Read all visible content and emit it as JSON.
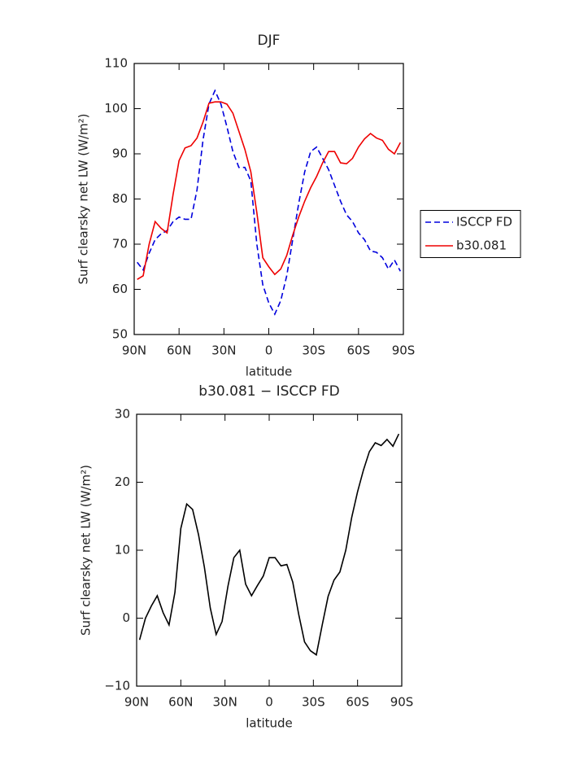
{
  "chart_data": [
    {
      "type": "line",
      "title": "DJF",
      "x_label": "latitude",
      "y_label": "Surf clearsky net LW (W/m²)",
      "x": [
        88,
        84,
        80,
        76,
        72,
        68,
        64,
        60,
        56,
        52,
        48,
        44,
        40,
        36,
        32,
        28,
        24,
        20,
        16,
        12,
        8,
        4,
        0,
        -4,
        -8,
        -12,
        -16,
        -20,
        -24,
        -28,
        -32,
        -36,
        -40,
        -44,
        -48,
        -52,
        -56,
        -60,
        -64,
        -68,
        -72,
        -76,
        -80,
        -84,
        -88
      ],
      "xlim": [
        90,
        -90
      ],
      "xticks": [
        {
          "value": 90,
          "label": "90N"
        },
        {
          "value": 60,
          "label": "60N"
        },
        {
          "value": 30,
          "label": "30N"
        },
        0,
        {
          "value": -30,
          "label": "30S"
        },
        {
          "value": -60,
          "label": "60S"
        },
        {
          "value": -90,
          "label": "90S"
        }
      ],
      "ylim": [
        50,
        110
      ],
      "yticks": [
        50,
        60,
        70,
        80,
        90,
        100,
        110
      ],
      "legend": "right",
      "series": [
        {
          "name": "ISCCP FD",
          "color": "#0000dd",
          "linestyle": "dashed",
          "values": [
            66,
            64.3,
            68,
            71,
            72.3,
            73,
            75,
            76,
            75.5,
            75.5,
            82,
            93,
            101,
            104,
            101,
            96,
            90.5,
            87,
            87,
            84,
            70,
            61,
            57,
            54.5,
            57.5,
            63,
            71,
            79,
            86,
            90.5,
            91.5,
            89,
            86.5,
            83,
            79.5,
            76.5,
            75,
            72.5,
            71,
            68.5,
            68.2,
            67,
            64.5,
            66.5,
            64
          ]
        },
        {
          "name": "b30.081",
          "color": "#ee0000",
          "linestyle": "solid",
          "values": [
            62.2,
            63,
            70,
            75,
            73.5,
            72.5,
            81,
            88.5,
            91.3,
            91.8,
            93.5,
            97,
            101.2,
            101.5,
            101.5,
            101,
            99,
            95,
            91,
            86,
            77,
            67,
            65,
            63.3,
            64.5,
            67.5,
            72,
            76,
            79.5,
            82.5,
            85,
            88,
            90.5,
            90.5,
            88,
            87.8,
            89,
            91.5,
            93.3,
            94.5,
            93.5,
            93,
            91,
            90,
            92.5
          ]
        }
      ]
    },
    {
      "type": "line",
      "title": "b30.081 − ISCCP FD",
      "x_label": "latitude",
      "y_label": "Surf clearsky net LW (W/m²)",
      "x": [
        88,
        84,
        80,
        76,
        72,
        68,
        64,
        60,
        56,
        52,
        48,
        44,
        40,
        36,
        32,
        28,
        24,
        20,
        16,
        12,
        8,
        4,
        0,
        -4,
        -8,
        -12,
        -16,
        -20,
        -24,
        -28,
        -32,
        -36,
        -40,
        -44,
        -48,
        -52,
        -56,
        -60,
        -64,
        -68,
        -72,
        -76,
        -80,
        -84,
        -88
      ],
      "xlim": [
        90,
        -90
      ],
      "xticks": [
        {
          "value": 90,
          "label": "90N"
        },
        {
          "value": 60,
          "label": "60N"
        },
        {
          "value": 30,
          "label": "30N"
        },
        0,
        {
          "value": -30,
          "label": "30S"
        },
        {
          "value": -60,
          "label": "60S"
        },
        {
          "value": -90,
          "label": "90S"
        }
      ],
      "ylim": [
        -10,
        30
      ],
      "yticks": [
        {
          "value": -10,
          "label": "−10"
        },
        0,
        10,
        20,
        30
      ],
      "series": [
        {
          "color": "#000000",
          "linestyle": "solid",
          "values": [
            -3.2,
            0,
            1.8,
            3.3,
            0.8,
            -1.0,
            3.8,
            13.2,
            16.8,
            16.0,
            12.3,
            7.5,
            1.5,
            -2.4,
            -0.5,
            4.7,
            8.9,
            10.0,
            5.0,
            3.3,
            4.8,
            6.2,
            8.9,
            8.9,
            7.7,
            7.9,
            5.3,
            0.6,
            -3.5,
            -4.8,
            -5.4,
            -1.0,
            3.2,
            5.6,
            6.8,
            10,
            14.8,
            18.6,
            21.8,
            24.5,
            25.8,
            25.4,
            26.3,
            25.3,
            27.1
          ]
        }
      ]
    }
  ]
}
